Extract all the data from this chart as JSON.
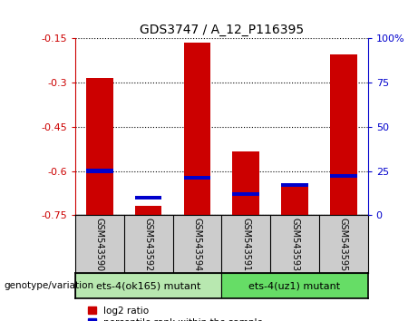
{
  "title": "GDS3747 / A_12_P116395",
  "samples": [
    "GSM543590",
    "GSM543592",
    "GSM543594",
    "GSM543591",
    "GSM543593",
    "GSM543595"
  ],
  "log2_ratio": [
    -0.285,
    -0.72,
    -0.165,
    -0.535,
    -0.655,
    -0.205
  ],
  "percentile_rank": [
    25,
    10,
    21,
    12,
    17,
    22
  ],
  "ylim_left": [
    -0.75,
    -0.15
  ],
  "yticks_left": [
    -0.75,
    -0.6,
    -0.45,
    -0.3,
    -0.15
  ],
  "yticks_right": [
    0,
    25,
    50,
    75,
    100
  ],
  "group1_label": "ets-4(ok165) mutant",
  "group2_label": "ets-4(uz1) mutant",
  "group1_indices": [
    0,
    1,
    2
  ],
  "group2_indices": [
    3,
    4,
    5
  ],
  "group1_color": "#b8e8b0",
  "group2_color": "#66dd66",
  "bar_color_red": "#cc0000",
  "bar_color_blue": "#0000cc",
  "bg_color": "#cccccc",
  "plot_bg": "#ffffff",
  "left_axis_color": "#cc0000",
  "right_axis_color": "#0000cc",
  "bar_width": 0.55,
  "genotype_label": "genotype/variation"
}
